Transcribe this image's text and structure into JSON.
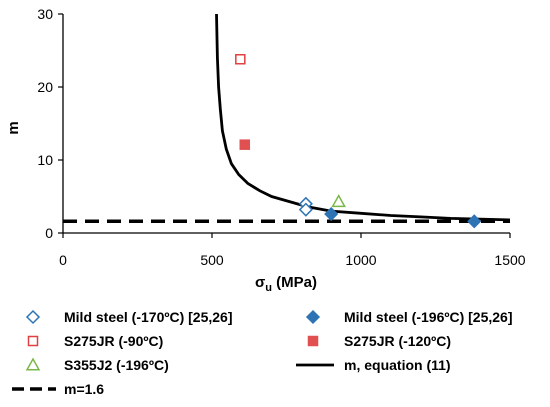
{
  "chart_data": {
    "type": "scatter",
    "title": "",
    "xlabel": "σ",
    "xlabel_sub": "u",
    "xlabel_unit": " (MPa)",
    "ylabel": "m",
    "xlim": [
      0,
      1500
    ],
    "ylim": [
      0,
      30
    ],
    "x_ticks": [
      "0",
      "500",
      "1000",
      "1500"
    ],
    "y_ticks": [
      "0",
      "10",
      "20",
      "30"
    ],
    "grid": false,
    "legend_position": "bottom",
    "series": [
      {
        "name": "Mild steel (-170ºC) [25,26]",
        "marker": "diamond-open",
        "color": "#2e74b5",
        "points": [
          [
            815,
            4.0
          ],
          [
            815,
            3.2
          ]
        ]
      },
      {
        "name": "Mild steel (-196ºC) [25,26]",
        "marker": "diamond-filled",
        "color": "#2e74b5",
        "points": [
          [
            900,
            2.6
          ],
          [
            1380,
            1.6
          ]
        ]
      },
      {
        "name": "S275JR (-90ºC)",
        "marker": "square-open",
        "color": "#e04040",
        "points": [
          [
            595,
            23.8
          ]
        ]
      },
      {
        "name": "S275JR (-120ºC)",
        "marker": "square-filled",
        "color": "#e05050",
        "points": [
          [
            610,
            12.1
          ]
        ]
      },
      {
        "name": "S355J2 (-196ºC)",
        "marker": "triangle-open",
        "color": "#7ab648",
        "points": [
          [
            925,
            4.3
          ]
        ]
      },
      {
        "name": "m, equation (11)",
        "marker": "line-solid",
        "color": "#000000",
        "points": [
          [
            515,
            30
          ],
          [
            518,
            24
          ],
          [
            522,
            20
          ],
          [
            528,
            17
          ],
          [
            535,
            14
          ],
          [
            548,
            11.5
          ],
          [
            565,
            9.5
          ],
          [
            590,
            8.0
          ],
          [
            620,
            6.8
          ],
          [
            660,
            5.8
          ],
          [
            700,
            5.0
          ],
          [
            760,
            4.3
          ],
          [
            820,
            3.6
          ],
          [
            900,
            3.0
          ],
          [
            1000,
            2.7
          ],
          [
            1100,
            2.4
          ],
          [
            1200,
            2.2
          ],
          [
            1300,
            2.0
          ],
          [
            1400,
            1.9
          ],
          [
            1500,
            1.8
          ]
        ]
      },
      {
        "name": "m=1.6",
        "marker": "line-dashed",
        "color": "#000000",
        "points": [
          [
            0,
            1.6
          ],
          [
            1500,
            1.6
          ]
        ]
      }
    ]
  }
}
